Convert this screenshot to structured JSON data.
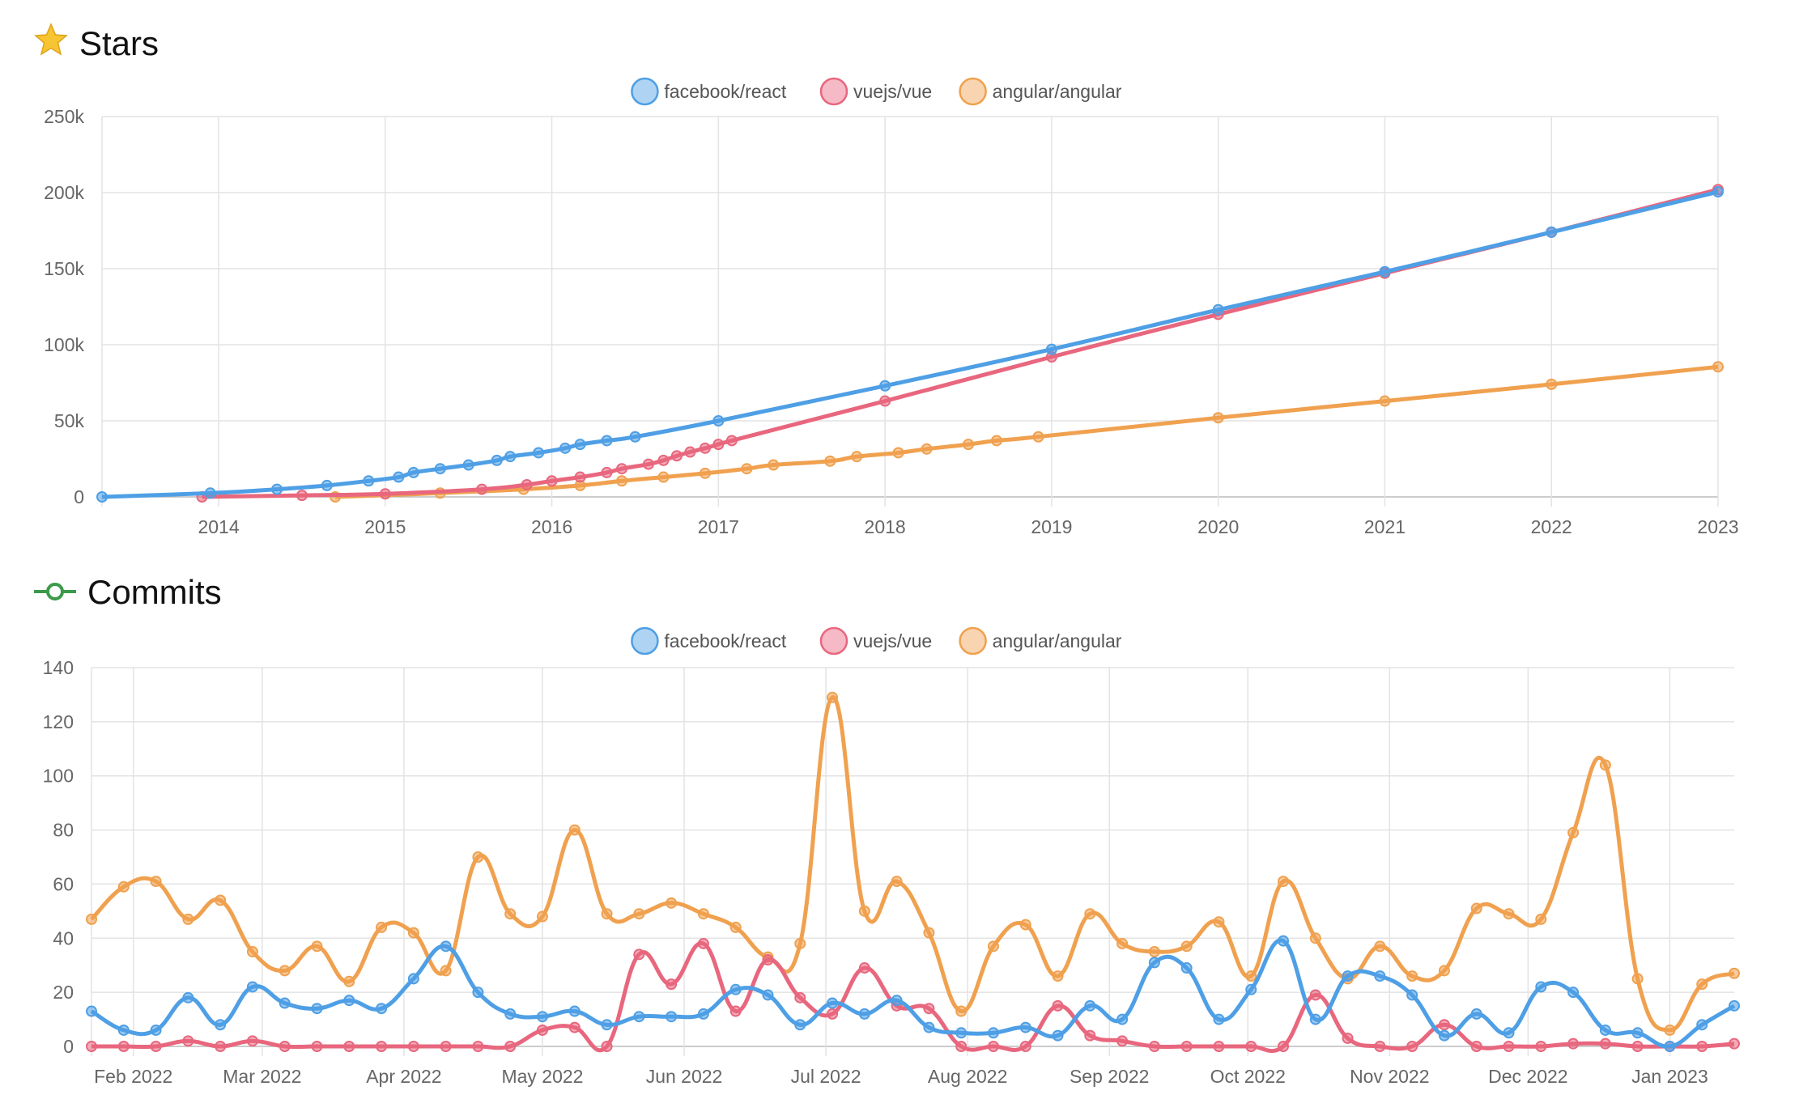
{
  "stars": {
    "title": "Stars",
    "icon": "star-icon",
    "chart_data": {
      "type": "line",
      "title": "Stars",
      "x_kind": "year",
      "x_range": [
        2013.3,
        2023.0
      ],
      "x_ticks": [
        "2014",
        "2015",
        "2016",
        "2017",
        "2018",
        "2019",
        "2020",
        "2021",
        "2022",
        "2023"
      ],
      "ylim": [
        0,
        250000
      ],
      "y_ticks": [
        "0",
        "50k",
        "100k",
        "150k",
        "200k",
        "250k"
      ],
      "grid": true,
      "legend": "top-center",
      "series": [
        {
          "name": "facebook/react",
          "color": "#4e9fe5",
          "points": [
            [
              2013.3,
              0
            ],
            [
              2013.95,
              2500
            ],
            [
              2014.35,
              5000
            ],
            [
              2014.65,
              7500
            ],
            [
              2014.9,
              10500
            ],
            [
              2015.08,
              13000
            ],
            [
              2015.17,
              16000
            ],
            [
              2015.33,
              18500
            ],
            [
              2015.5,
              21000
            ],
            [
              2015.67,
              24000
            ],
            [
              2015.75,
              26500
            ],
            [
              2015.92,
              29000
            ],
            [
              2016.08,
              32000
            ],
            [
              2016.17,
              34500
            ],
            [
              2016.33,
              37000
            ],
            [
              2016.5,
              39500
            ],
            [
              2017.0,
              50000
            ],
            [
              2018.0,
              73000
            ],
            [
              2019.0,
              97000
            ],
            [
              2020.0,
              123000
            ],
            [
              2021.0,
              148000
            ],
            [
              2022.0,
              174000
            ],
            [
              2023.0,
              200500
            ]
          ]
        },
        {
          "name": "vuejs/vue",
          "color": "#e8677e",
          "points": [
            [
              2013.9,
              0
            ],
            [
              2014.5,
              1000
            ],
            [
              2015.0,
              2000
            ],
            [
              2015.58,
              5000
            ],
            [
              2015.85,
              8000
            ],
            [
              2016.0,
              10500
            ],
            [
              2016.17,
              13000
            ],
            [
              2016.33,
              16000
            ],
            [
              2016.42,
              18500
            ],
            [
              2016.58,
              21500
            ],
            [
              2016.67,
              24000
            ],
            [
              2016.75,
              27000
            ],
            [
              2016.83,
              29500
            ],
            [
              2016.92,
              32000
            ],
            [
              2017.0,
              34500
            ],
            [
              2017.08,
              37000
            ],
            [
              2018.0,
              63000
            ],
            [
              2019.0,
              92000
            ],
            [
              2020.0,
              120000
            ],
            [
              2021.0,
              147000
            ],
            [
              2022.0,
              174000
            ],
            [
              2023.0,
              202000
            ]
          ]
        },
        {
          "name": "angular/angular",
          "color": "#f0a14f",
          "points": [
            [
              2014.7,
              0
            ],
            [
              2015.33,
              2500
            ],
            [
              2015.83,
              5000
            ],
            [
              2016.17,
              7500
            ],
            [
              2016.42,
              10500
            ],
            [
              2016.67,
              13000
            ],
            [
              2016.92,
              15500
            ],
            [
              2017.17,
              18500
            ],
            [
              2017.33,
              21000
            ],
            [
              2017.67,
              23500
            ],
            [
              2017.83,
              26500
            ],
            [
              2018.08,
              29000
            ],
            [
              2018.25,
              31500
            ],
            [
              2018.5,
              34500
            ],
            [
              2018.67,
              37000
            ],
            [
              2018.92,
              39500
            ],
            [
              2020.0,
              52000
            ],
            [
              2021.0,
              63000
            ],
            [
              2022.0,
              74000
            ],
            [
              2023.0,
              85500
            ]
          ]
        }
      ]
    }
  },
  "commits": {
    "title": "Commits",
    "icon": "git-commit-icon",
    "chart_data": {
      "type": "line",
      "title": "Commits",
      "x_kind": "weekly",
      "x_ticks": [
        "Feb 2022",
        "Mar 2022",
        "Apr 2022",
        "May 2022",
        "Jun 2022",
        "Jul 2022",
        "Aug 2022",
        "Sep 2022",
        "Oct 2022",
        "Nov 2022",
        "Dec 2022",
        "Jan 2023"
      ],
      "ylim": [
        0,
        140
      ],
      "y_ticks": [
        "0",
        "20",
        "40",
        "60",
        "80",
        "100",
        "120",
        "140"
      ],
      "grid": true,
      "legend": "top-center",
      "series": [
        {
          "name": "facebook/react",
          "color": "#4e9fe5",
          "values": [
            13,
            6,
            6,
            18,
            8,
            22,
            16,
            14,
            17,
            14,
            25,
            37,
            20,
            12,
            11,
            13,
            8,
            11,
            11,
            12,
            21,
            19,
            8,
            16,
            12,
            17,
            7,
            5,
            5,
            7,
            4,
            15,
            10,
            31,
            29,
            10,
            21,
            39,
            10,
            26,
            26,
            19,
            4,
            12,
            5,
            22,
            20,
            6,
            5,
            0,
            8,
            15
          ]
        },
        {
          "name": "vuejs/vue",
          "color": "#e8677e",
          "values": [
            0,
            0,
            0,
            2,
            0,
            2,
            0,
            0,
            0,
            0,
            0,
            0,
            0,
            0,
            6,
            7,
            0,
            34,
            23,
            38,
            13,
            32,
            18,
            12,
            29,
            15,
            14,
            0,
            0,
            0,
            15,
            4,
            2,
            0,
            0,
            0,
            0,
            0,
            19,
            3,
            0,
            0,
            8,
            0,
            0,
            0,
            1,
            1,
            0,
            0,
            0,
            1
          ]
        },
        {
          "name": "angular/angular",
          "color": "#f0a14f",
          "values": [
            47,
            59,
            61,
            47,
            54,
            35,
            28,
            37,
            24,
            44,
            42,
            28,
            70,
            49,
            48,
            80,
            49,
            49,
            53,
            49,
            44,
            33,
            38,
            129,
            50,
            61,
            42,
            13,
            37,
            45,
            26,
            49,
            38,
            35,
            37,
            46,
            26,
            61,
            40,
            25,
            37,
            26,
            28,
            51,
            49,
            47,
            79,
            104,
            25,
            6,
            23,
            27
          ]
        }
      ]
    }
  }
}
